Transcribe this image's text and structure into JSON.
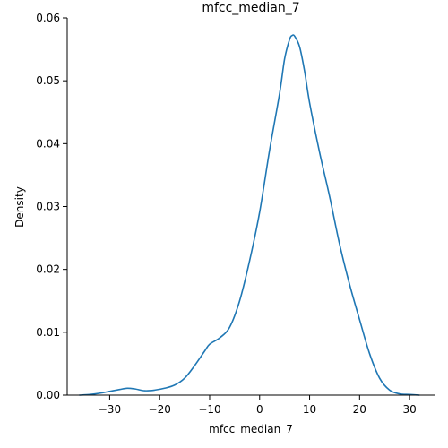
{
  "chart_data": {
    "type": "line",
    "title": "mfcc_median_7",
    "xlabel": "mfcc_median_7",
    "ylabel": "Density",
    "xlim": [
      -38.5,
      35
    ],
    "ylim": [
      0,
      0.06
    ],
    "grid": false,
    "xticks": [
      -30,
      -20,
      -10,
      0,
      10,
      20,
      30
    ],
    "xtick_labels": [
      "−30",
      "−20",
      "−10",
      "0",
      "10",
      "20",
      "30"
    ],
    "yticks": [
      0,
      0.01,
      0.02,
      0.03,
      0.04,
      0.05,
      0.06
    ],
    "ytick_labels": [
      "0.00",
      "0.01",
      "0.02",
      "0.03",
      "0.04",
      "0.05",
      "0.06"
    ],
    "colors": {
      "line": "#1f77b4",
      "axis": "#000000"
    },
    "series": [
      {
        "x": [
          -36.1,
          -34,
          -32,
          -30,
          -28,
          -26.5,
          -25,
          -23,
          -21,
          -19,
          -17,
          -15,
          -13,
          -11,
          -10,
          -8,
          -6,
          -4,
          -2,
          0,
          2,
          4,
          5,
          6,
          6.5,
          7,
          8,
          9,
          10,
          12,
          14,
          16,
          18,
          20,
          22,
          24,
          26,
          28,
          30,
          32
        ],
        "y": [
          0,
          0.0001,
          0.0003,
          0.0006,
          0.0009,
          0.0011,
          0.001,
          0.0007,
          0.0008,
          0.0011,
          0.0016,
          0.0027,
          0.0047,
          0.007,
          0.0081,
          0.0091,
          0.0108,
          0.015,
          0.0214,
          0.0291,
          0.039,
          0.048,
          0.0535,
          0.0566,
          0.0572,
          0.0571,
          0.0554,
          0.0515,
          0.0465,
          0.0386,
          0.0316,
          0.024,
          0.0176,
          0.012,
          0.0066,
          0.0027,
          0.0008,
          0.0002,
          0.0001,
          0
        ]
      }
    ]
  }
}
